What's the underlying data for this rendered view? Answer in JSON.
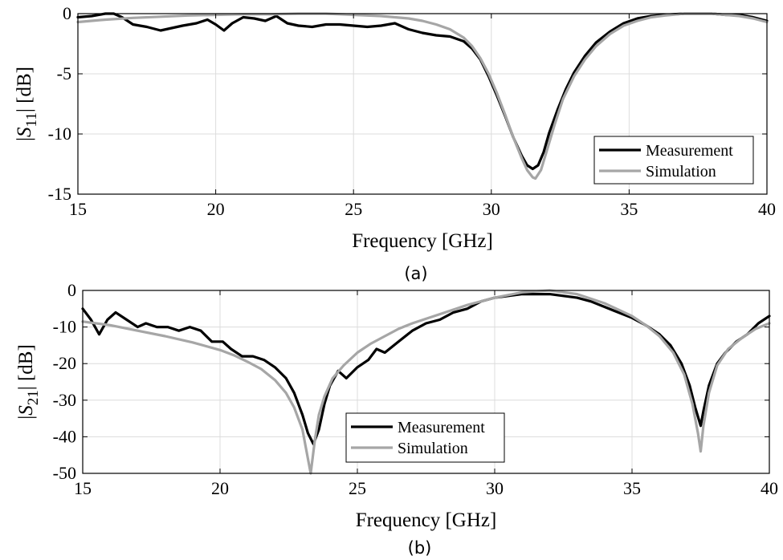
{
  "chart_data": [
    {
      "type": "line",
      "panel_label": "(a)",
      "xlabel": "Frequency [GHz]",
      "ylabel": {
        "prefix": "|",
        "main": "S",
        "sub": "11",
        "suffix": "| [dB]"
      },
      "xlim": [
        15,
        40
      ],
      "ylim": [
        -15,
        0
      ],
      "xticks": [
        15,
        20,
        25,
        30,
        35,
        40
      ],
      "yticks": [
        0,
        -5,
        -10,
        -15
      ],
      "grid": true,
      "legend": {
        "position": "bottom-right",
        "items": [
          "Measurement",
          "Simulation"
        ]
      },
      "series": [
        {
          "name": "Measurement",
          "color": "#000000",
          "x": [
            15,
            15.5,
            16,
            16.3,
            16.6,
            17,
            17.5,
            18,
            18.4,
            18.8,
            19.3,
            19.7,
            20,
            20.3,
            20.6,
            21,
            21.4,
            21.8,
            22.2,
            22.6,
            23,
            23.5,
            24,
            24.5,
            25,
            25.5,
            26,
            26.5,
            27,
            27.5,
            28,
            28.5,
            29,
            29.3,
            29.6,
            29.9,
            30.2,
            30.5,
            30.8,
            31.1,
            31.3,
            31.5,
            31.7,
            31.9,
            32.1,
            32.4,
            32.7,
            33,
            33.4,
            33.8,
            34.3,
            34.8,
            35.3,
            35.8,
            36.3,
            37,
            37.5,
            38,
            38.5,
            39,
            39.5,
            40
          ],
          "y": [
            -0.3,
            -0.2,
            0.1,
            0,
            -0.3,
            -0.9,
            -1.1,
            -1.4,
            -1.2,
            -1.0,
            -0.8,
            -0.5,
            -0.9,
            -1.4,
            -0.8,
            -0.3,
            -0.4,
            -0.6,
            -0.2,
            -0.8,
            -1.0,
            -1.1,
            -0.9,
            -0.9,
            -1.0,
            -1.1,
            -1.0,
            -0.8,
            -1.3,
            -1.6,
            -1.8,
            -1.9,
            -2.3,
            -2.9,
            -3.8,
            -5.2,
            -6.8,
            -8.5,
            -10.3,
            -11.8,
            -12.6,
            -12.9,
            -12.6,
            -11.5,
            -9.9,
            -8.0,
            -6.3,
            -4.9,
            -3.5,
            -2.4,
            -1.5,
            -0.8,
            -0.4,
            -0.2,
            -0.1,
            0,
            0,
            0.1,
            -0.1,
            -0.1,
            -0.3,
            -0.6
          ]
        },
        {
          "name": "Simulation",
          "color": "#a6a6a6",
          "x": [
            15,
            16,
            17,
            18,
            19,
            20,
            21,
            22,
            23,
            24,
            25,
            26,
            27,
            27.5,
            28,
            28.5,
            29,
            29.3,
            29.6,
            29.9,
            30.2,
            30.5,
            30.8,
            31.1,
            31.3,
            31.5,
            31.6,
            31.8,
            32,
            32.3,
            32.6,
            33,
            33.4,
            33.8,
            34.3,
            34.8,
            35.3,
            35.8,
            36.3,
            37,
            37.5,
            38,
            38.5,
            39,
            39.5,
            40
          ],
          "y": [
            -0.7,
            -0.5,
            -0.35,
            -0.25,
            -0.15,
            -0.1,
            -0.05,
            -0.05,
            0,
            0,
            -0.1,
            -0.2,
            -0.4,
            -0.6,
            -0.9,
            -1.3,
            -2.0,
            -2.7,
            -3.7,
            -5.0,
            -6.6,
            -8.4,
            -10.3,
            -12.0,
            -13.0,
            -13.6,
            -13.7,
            -13.0,
            -11.5,
            -9.2,
            -7.1,
            -5.2,
            -3.8,
            -2.7,
            -1.7,
            -1.0,
            -0.6,
            -0.3,
            -0.15,
            0,
            0,
            0,
            -0.1,
            -0.2,
            -0.4,
            -0.7
          ]
        }
      ]
    },
    {
      "type": "line",
      "panel_label": "(b)",
      "xlabel": "Frequency [GHz]",
      "ylabel": {
        "prefix": "|",
        "main": "S",
        "sub": "21",
        "suffix": "| [dB]"
      },
      "xlim": [
        15,
        40
      ],
      "ylim": [
        -50,
        0
      ],
      "xticks": [
        15,
        20,
        25,
        30,
        35,
        40
      ],
      "yticks": [
        0,
        -10,
        -20,
        -30,
        -40,
        -50
      ],
      "grid": true,
      "legend": {
        "position": "bottom-center",
        "items": [
          "Measurement",
          "Simulation"
        ]
      },
      "series": [
        {
          "name": "Measurement",
          "color": "#000000",
          "x": [
            15,
            15.3,
            15.6,
            15.9,
            16.2,
            16.6,
            17,
            17.3,
            17.7,
            18.1,
            18.5,
            18.9,
            19.3,
            19.7,
            20.1,
            20.4,
            20.8,
            21.2,
            21.6,
            22,
            22.4,
            22.7,
            23,
            23.2,
            23.4,
            23.6,
            23.8,
            24,
            24.3,
            24.6,
            25,
            25.4,
            25.7,
            26,
            26.5,
            27,
            27.5,
            28,
            28.5,
            29,
            29.5,
            30,
            30.5,
            31,
            31.5,
            32,
            32.5,
            33,
            33.5,
            34,
            34.5,
            35,
            35.5,
            36,
            36.4,
            36.8,
            37.1,
            37.3,
            37.5,
            37.6,
            37.8,
            38.1,
            38.4,
            38.8,
            39.2,
            39.6,
            40
          ],
          "y": [
            -5,
            -8,
            -12,
            -8,
            -6,
            -8,
            -10,
            -9,
            -10,
            -10,
            -11,
            -10,
            -11,
            -14,
            -14,
            -16,
            -18,
            -18,
            -19,
            -21,
            -24,
            -28,
            -34,
            -39,
            -42,
            -38,
            -31,
            -26,
            -22,
            -24,
            -21,
            -19,
            -16,
            -17,
            -14,
            -11,
            -9,
            -8,
            -6,
            -5,
            -3,
            -2,
            -1.5,
            -1,
            -1,
            -1,
            -1.5,
            -2,
            -3,
            -4.5,
            -6,
            -7.5,
            -9.5,
            -12,
            -15,
            -20,
            -26,
            -32,
            -37,
            -33,
            -26,
            -20,
            -17,
            -14,
            -12,
            -9,
            -7
          ]
        },
        {
          "name": "Simulation",
          "color": "#a6a6a6",
          "x": [
            15,
            16,
            17,
            18,
            19,
            20,
            20.5,
            21,
            21.5,
            22,
            22.4,
            22.7,
            23,
            23.15,
            23.3,
            23.45,
            23.6,
            23.8,
            24.1,
            24.5,
            25,
            25.5,
            26,
            26.5,
            27,
            28,
            29,
            30,
            31,
            32,
            33,
            34,
            35,
            35.5,
            36,
            36.5,
            36.9,
            37.2,
            37.4,
            37.5,
            37.6,
            37.8,
            38.1,
            38.5,
            39,
            39.5,
            40
          ],
          "y": [
            -8.5,
            -9.5,
            -11,
            -12.5,
            -14.2,
            -16.3,
            -17.7,
            -19.5,
            -21.5,
            -24.5,
            -28,
            -32,
            -38,
            -44,
            -50,
            -41,
            -34,
            -29,
            -24,
            -20.5,
            -17,
            -14.5,
            -12.5,
            -10.5,
            -9,
            -6.5,
            -4,
            -2,
            -0.5,
            0,
            -1,
            -3.5,
            -7,
            -9.5,
            -12.5,
            -17,
            -23,
            -31,
            -39,
            -44,
            -37,
            -28,
            -20.5,
            -16,
            -13,
            -10.5,
            -9
          ]
        }
      ]
    }
  ]
}
